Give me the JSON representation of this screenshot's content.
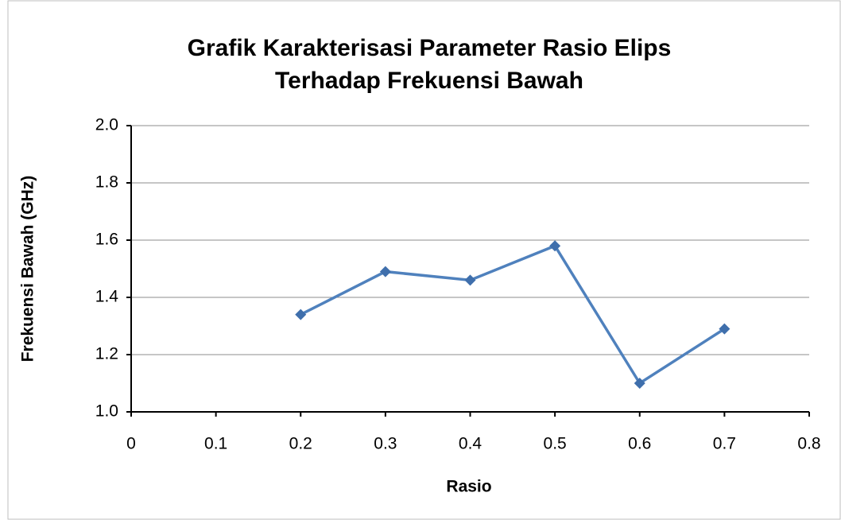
{
  "chart_data": {
    "type": "line",
    "title": [
      "Grafik Karakterisasi Parameter Rasio Elips",
      "Terhadap Frekuensi Bawah"
    ],
    "x_label": "Rasio",
    "y_label": "Frekuensi Bawah (GHz)",
    "x": [
      0.2,
      0.3,
      0.4,
      0.5,
      0.6,
      0.7
    ],
    "series": [
      {
        "color": "#4f81bd",
        "marker_color": "#3f6fac",
        "values": [
          1.34,
          1.49,
          1.46,
          1.58,
          1.1,
          1.29
        ]
      }
    ],
    "xlim": [
      0,
      0.8
    ],
    "xticks": [
      0,
      0.1,
      0.2,
      0.3,
      0.4,
      0.5,
      0.6,
      0.7,
      0.8
    ],
    "ylim": [
      1,
      2
    ],
    "yticks": [
      {
        "value": 1,
        "label": "1.0"
      },
      1.2,
      1.4,
      1.6,
      1.8,
      {
        "value": 2,
        "label": "2.0"
      }
    ],
    "grid": true
  }
}
